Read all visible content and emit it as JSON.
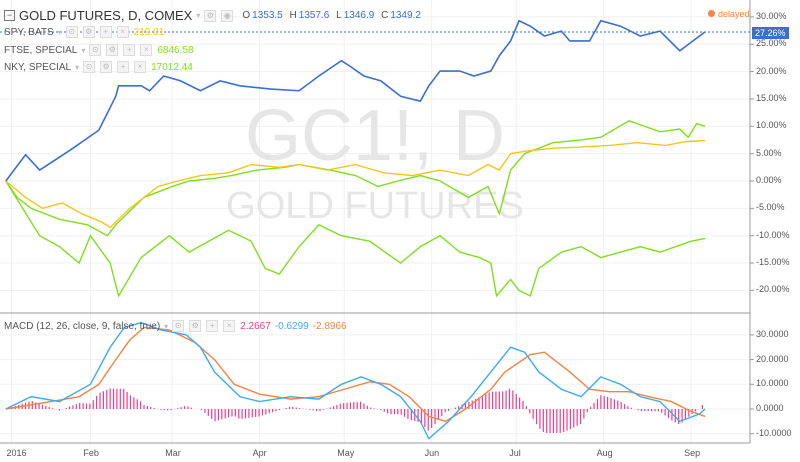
{
  "header": {
    "symbol_title": "GOLD FUTURES, D, COMEX",
    "ohlc": {
      "o_label": "O",
      "o": "1353.5",
      "h_label": "H",
      "h": "1357.6",
      "l_label": "L",
      "l": "1346.9",
      "c_label": "C",
      "c": "1349.2"
    },
    "delayed_label": "delayed"
  },
  "watermark": {
    "line1": "GC1!, D",
    "line2": "GOLD FUTURES"
  },
  "compare": [
    {
      "name": "SPY, BATS",
      "value": "219.01",
      "color": "#f5c518"
    },
    {
      "name": "FTSE, SPECIAL",
      "value": "6846.58",
      "color": "#7fe019"
    },
    {
      "name": "NKY, SPECIAL",
      "value": "17012.44",
      "color": "#7fe019"
    }
  ],
  "macd_legend": {
    "name": "MACD (12, 26, close, 9, false, true)",
    "hist": "2.2667",
    "macd": "-0.6299",
    "signal": "-2.8966",
    "hist_color": "#ef3d8b",
    "macd_color": "#3fa9f5",
    "signal_color": "#f4843f"
  },
  "price_axis": [
    "30.00%",
    "25.00%",
    "20.00%",
    "15.00%",
    "10.00%",
    "5.00%",
    "0.00%",
    "-5.00%",
    "-10.00%",
    "-15.00%",
    "-20.00%"
  ],
  "last_value_label": "27.26%",
  "macd_axis": [
    "30.0000",
    "20.0000",
    "10.0000",
    "0.0000",
    "-10.0000"
  ],
  "time_axis": [
    "2016",
    "Feb",
    "Mar",
    "Apr",
    "May",
    "Jun",
    "Jul",
    "Aug",
    "Sep"
  ],
  "chart_data": {
    "type": "line",
    "x_unit": "day of year 2016",
    "month_days": [
      3,
      31,
      60,
      91,
      121,
      152,
      182,
      213,
      244
    ],
    "price_levels": [
      30,
      25,
      20,
      15,
      10,
      5,
      0,
      -5,
      -10,
      -15,
      -20
    ],
    "last_value": 27.26,
    "series": [
      {
        "name": "GC1!",
        "color": "#3a6fcf",
        "points": [
          [
            1,
            0
          ],
          [
            8,
            4.8
          ],
          [
            13,
            2
          ],
          [
            24,
            5.7
          ],
          [
            34,
            9.3
          ],
          [
            40,
            15.5
          ],
          [
            41,
            17.4
          ],
          [
            49,
            17.4
          ],
          [
            52,
            16.5
          ],
          [
            57,
            19.2
          ],
          [
            63,
            18.3
          ],
          [
            70,
            16.5
          ],
          [
            77,
            18.3
          ],
          [
            84,
            17.4
          ],
          [
            95,
            16.8
          ],
          [
            105,
            16.5
          ],
          [
            112,
            19.2
          ],
          [
            120,
            22
          ],
          [
            123,
            21
          ],
          [
            128,
            19.2
          ],
          [
            134,
            18.3
          ],
          [
            141,
            15.5
          ],
          [
            148,
            14.6
          ],
          [
            151,
            17.4
          ],
          [
            155,
            20.1
          ],
          [
            162,
            20.1
          ],
          [
            167,
            19.2
          ],
          [
            173,
            20.1
          ],
          [
            176,
            22.9
          ],
          [
            180,
            25.6
          ],
          [
            183,
            29.3
          ],
          [
            187,
            28.3
          ],
          [
            192,
            26.5
          ],
          [
            198,
            27.4
          ],
          [
            201,
            25.6
          ],
          [
            208,
            25.6
          ],
          [
            212,
            29.3
          ],
          [
            219,
            28.3
          ],
          [
            226,
            26.5
          ],
          [
            233,
            27.4
          ],
          [
            240,
            23.8
          ],
          [
            247,
            26.5
          ],
          [
            249,
            27.26
          ]
        ]
      },
      {
        "name": "SPY",
        "color": "#f5c518",
        "points": [
          [
            1,
            0
          ],
          [
            8,
            -3
          ],
          [
            14,
            -5
          ],
          [
            21,
            -4
          ],
          [
            28,
            -6
          ],
          [
            35,
            -7.5
          ],
          [
            38,
            -8.5
          ],
          [
            45,
            -5
          ],
          [
            55,
            -1
          ],
          [
            62,
            0
          ],
          [
            70,
            1
          ],
          [
            80,
            1.5
          ],
          [
            88,
            3
          ],
          [
            98,
            2.5
          ],
          [
            105,
            3
          ],
          [
            115,
            2
          ],
          [
            125,
            3
          ],
          [
            135,
            1.5
          ],
          [
            145,
            1
          ],
          [
            155,
            2
          ],
          [
            165,
            1
          ],
          [
            172,
            3
          ],
          [
            176,
            2
          ],
          [
            180,
            5
          ],
          [
            186,
            5.5
          ],
          [
            195,
            6
          ],
          [
            205,
            6.2
          ],
          [
            215,
            6.5
          ],
          [
            225,
            7
          ],
          [
            235,
            6.5
          ],
          [
            242,
            7.2
          ],
          [
            249,
            7.4
          ]
        ]
      },
      {
        "name": "FTSE",
        "color": "#7fe019",
        "points": [
          [
            1,
            0
          ],
          [
            5,
            -3
          ],
          [
            10,
            -5
          ],
          [
            20,
            -7
          ],
          [
            30,
            -8
          ],
          [
            37,
            -10
          ],
          [
            40,
            -8
          ],
          [
            50,
            -3
          ],
          [
            60,
            -1
          ],
          [
            66,
            0
          ],
          [
            75,
            0.5
          ],
          [
            81,
            1
          ],
          [
            90,
            2
          ],
          [
            100,
            2.5
          ],
          [
            105,
            3
          ],
          [
            116,
            2
          ],
          [
            125,
            1
          ],
          [
            133,
            -1
          ],
          [
            140,
            0
          ],
          [
            148,
            1
          ],
          [
            155,
            0
          ],
          [
            165,
            -3
          ],
          [
            172,
            -1
          ],
          [
            176,
            -6
          ],
          [
            180,
            2
          ],
          [
            185,
            5
          ],
          [
            195,
            7
          ],
          [
            205,
            7.5
          ],
          [
            212,
            8
          ],
          [
            222,
            11
          ],
          [
            233,
            9
          ],
          [
            240,
            9.5
          ],
          [
            243,
            8
          ],
          [
            246,
            10.5
          ],
          [
            249,
            10
          ]
        ]
      },
      {
        "name": "NKY",
        "color": "#7fe019",
        "points": [
          [
            1,
            0
          ],
          [
            13,
            -10
          ],
          [
            20,
            -12
          ],
          [
            27,
            -15
          ],
          [
            31,
            -10
          ],
          [
            38,
            -15
          ],
          [
            41,
            -21
          ],
          [
            49,
            -14
          ],
          [
            59,
            -10
          ],
          [
            66,
            -13
          ],
          [
            73,
            -11
          ],
          [
            80,
            -9
          ],
          [
            88,
            -11
          ],
          [
            93,
            -16
          ],
          [
            98,
            -17
          ],
          [
            105,
            -12
          ],
          [
            112,
            -8
          ],
          [
            120,
            -10
          ],
          [
            130,
            -11
          ],
          [
            141,
            -15
          ],
          [
            148,
            -12
          ],
          [
            155,
            -10
          ],
          [
            162,
            -13
          ],
          [
            169,
            -14
          ],
          [
            173,
            -15
          ],
          [
            175,
            -21
          ],
          [
            180,
            -18
          ],
          [
            183,
            -20
          ],
          [
            187,
            -21
          ],
          [
            190,
            -16
          ],
          [
            198,
            -13
          ],
          [
            205,
            -12
          ],
          [
            212,
            -14
          ],
          [
            219,
            -13
          ],
          [
            226,
            -12
          ],
          [
            233,
            -13
          ],
          [
            244,
            -11
          ],
          [
            249,
            -10.5
          ]
        ]
      }
    ],
    "macd": {
      "levels": [
        30,
        20,
        10,
        0,
        -10
      ],
      "macd_line": [
        [
          1,
          0
        ],
        [
          10,
          5
        ],
        [
          20,
          3
        ],
        [
          31,
          10
        ],
        [
          38,
          25
        ],
        [
          43,
          33
        ],
        [
          49,
          35
        ],
        [
          56,
          32
        ],
        [
          65,
          30
        ],
        [
          70,
          25
        ],
        [
          75,
          15
        ],
        [
          84,
          5
        ],
        [
          91,
          3
        ],
        [
          102,
          5
        ],
        [
          112,
          4
        ],
        [
          120,
          10
        ],
        [
          127,
          13
        ],
        [
          134,
          10
        ],
        [
          141,
          5
        ],
        [
          148,
          -5
        ],
        [
          151,
          -12
        ],
        [
          158,
          -5
        ],
        [
          166,
          5
        ],
        [
          173,
          15
        ],
        [
          180,
          25
        ],
        [
          185,
          23
        ],
        [
          190,
          15
        ],
        [
          198,
          8
        ],
        [
          205,
          5
        ],
        [
          212,
          13
        ],
        [
          219,
          10
        ],
        [
          226,
          5
        ],
        [
          233,
          3
        ],
        [
          240,
          -5
        ],
        [
          247,
          -2
        ],
        [
          249,
          0
        ]
      ],
      "signal_line": [
        [
          1,
          0
        ],
        [
          17,
          3
        ],
        [
          27,
          5
        ],
        [
          34,
          10
        ],
        [
          40,
          20
        ],
        [
          45,
          28
        ],
        [
          50,
          33
        ],
        [
          59,
          32
        ],
        [
          68,
          27
        ],
        [
          75,
          20
        ],
        [
          82,
          10
        ],
        [
          91,
          6
        ],
        [
          102,
          4
        ],
        [
          112,
          5
        ],
        [
          121,
          8
        ],
        [
          130,
          11
        ],
        [
          137,
          10
        ],
        [
          144,
          5
        ],
        [
          151,
          -3
        ],
        [
          157,
          -5
        ],
        [
          164,
          0
        ],
        [
          173,
          8
        ],
        [
          178,
          15
        ],
        [
          187,
          22
        ],
        [
          192,
          23
        ],
        [
          201,
          15
        ],
        [
          208,
          8
        ],
        [
          215,
          7
        ],
        [
          222,
          7
        ],
        [
          229,
          5
        ],
        [
          237,
          3
        ],
        [
          244,
          -1
        ],
        [
          249,
          -3
        ]
      ]
    }
  }
}
